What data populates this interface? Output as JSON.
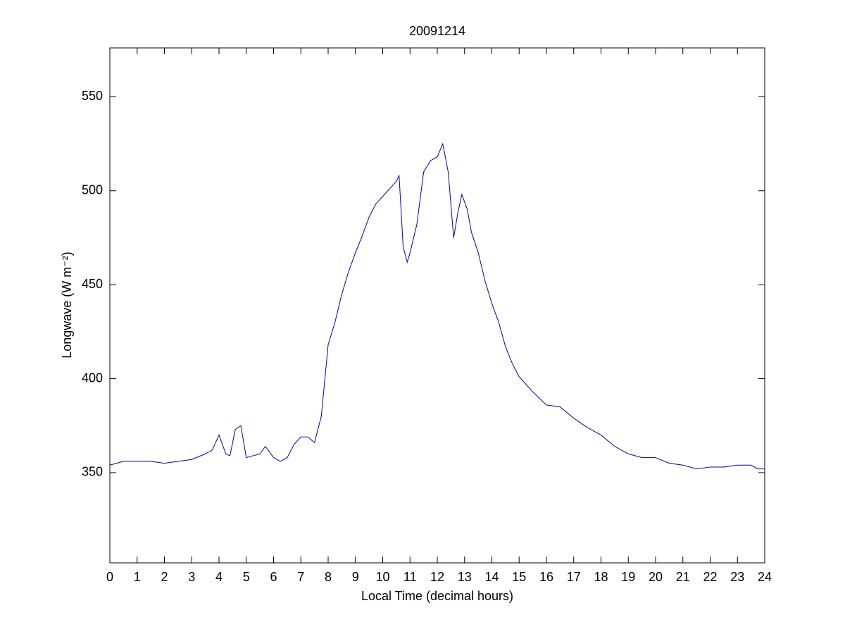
{
  "chart_data": {
    "type": "line",
    "title": "20091214",
    "x_label": "Local Time (decimal hours)",
    "y_label": "Longwave (W m⁻²)",
    "x": [
      0,
      0.25,
      0.5,
      1,
      1.5,
      2,
      2.5,
      3,
      3.5,
      3.75,
      4,
      4.25,
      4.4,
      4.6,
      4.8,
      5,
      5.25,
      5.5,
      5.7,
      6,
      6.25,
      6.5,
      6.75,
      7,
      7.25,
      7.5,
      7.75,
      8,
      8.25,
      8.5,
      8.75,
      9,
      9.25,
      9.5,
      9.75,
      10,
      10.25,
      10.5,
      10.6,
      10.75,
      10.9,
      11,
      11.25,
      11.5,
      11.75,
      12,
      12.2,
      12.4,
      12.6,
      12.75,
      12.9,
      13.1,
      13.25,
      13.5,
      13.75,
      14,
      14.25,
      14.5,
      14.75,
      15,
      15.5,
      16,
      16.5,
      17,
      17.5,
      18,
      18.5,
      19,
      19.5,
      20,
      20.5,
      21,
      21.5,
      22,
      22.5,
      23,
      23.5,
      23.75,
      24
    ],
    "series": [
      {
        "color": "#0000b0",
        "values": [
          354,
          355,
          356,
          356,
          356,
          355,
          356,
          357,
          360,
          362,
          370,
          360,
          359,
          373,
          375,
          358,
          359,
          360,
          364,
          358,
          356,
          358,
          365,
          369,
          369,
          366,
          380,
          418,
          430,
          445,
          457,
          467,
          476,
          486,
          493,
          497,
          501,
          505,
          508,
          470,
          462,
          467,
          482,
          510,
          516,
          518,
          525,
          510,
          475,
          488,
          498,
          490,
          478,
          467,
          452,
          440,
          430,
          417,
          408,
          401,
          393,
          386,
          385,
          379,
          374,
          370,
          364,
          360,
          358,
          358,
          355,
          354,
          352,
          353,
          353,
          354,
          354,
          352,
          352
        ]
      }
    ],
    "xlim": [
      0,
      24
    ],
    "xticks": [
      0,
      1,
      2,
      3,
      4,
      5,
      6,
      7,
      8,
      9,
      10,
      11,
      12,
      13,
      14,
      15,
      16,
      17,
      18,
      19,
      20,
      21,
      22,
      23,
      24
    ],
    "ylim": [
      302,
      576
    ],
    "yticks": [
      350,
      400,
      450,
      500,
      550
    ]
  }
}
